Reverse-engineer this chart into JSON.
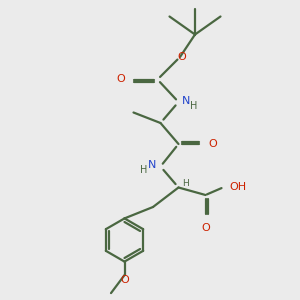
{
  "bg_color": "#ebebeb",
  "bond_color": "#4a6741",
  "o_color": "#cc2200",
  "n_color": "#2244cc",
  "bond_width": 1.6,
  "fig_size": [
    3.0,
    3.0
  ],
  "dpi": 100,
  "xlim": [
    0,
    10
  ],
  "ylim": [
    0,
    10
  ]
}
